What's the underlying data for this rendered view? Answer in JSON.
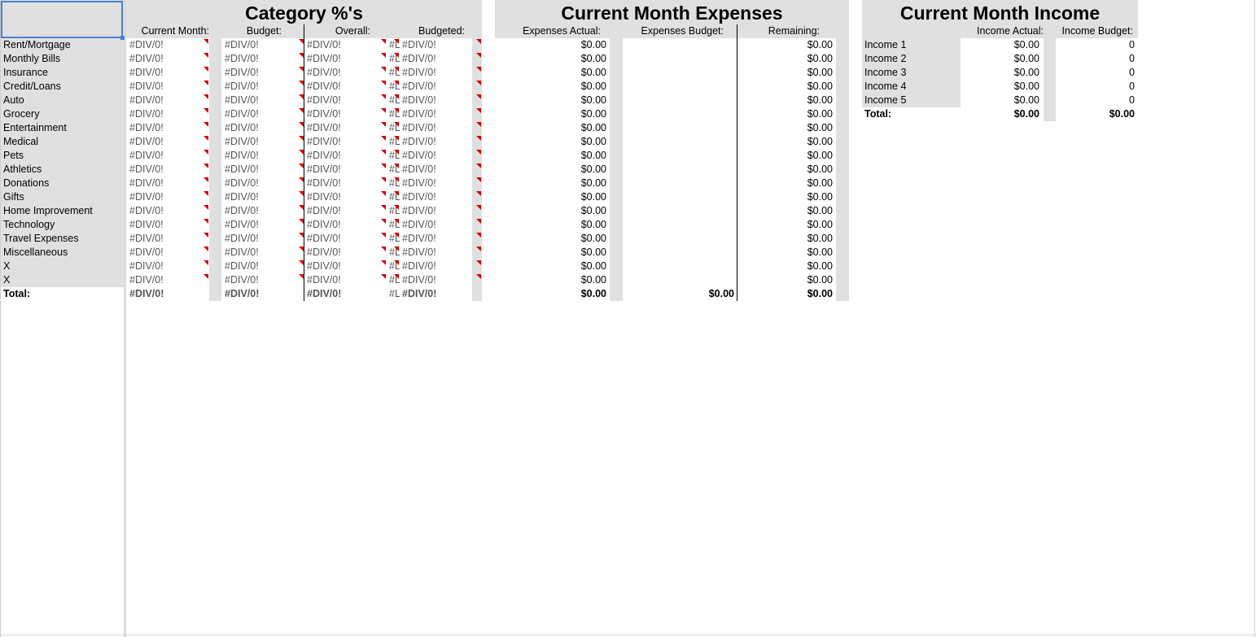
{
  "name_box": "",
  "category_pct": {
    "title": "Category %'s",
    "headers": [
      "Current Month:",
      "Budget:",
      "Overall:",
      "Budgeted:"
    ],
    "error_value": "#DIV/0!",
    "truncated_error": "#L"
  },
  "expenses": {
    "title": "Current Month Expenses",
    "headers": [
      "Expenses Actual:",
      "Expenses Budget:",
      "Remaining:"
    ],
    "row_value": "$0.00",
    "total_actual": "$0.00",
    "total_budget": "$0.00",
    "total_remaining": "$0.00"
  },
  "income": {
    "title": "Current Month Income",
    "headers": [
      "Income Actual:",
      "Income Budget:"
    ],
    "rows": [
      {
        "label": "Income 1",
        "actual": "$0.00",
        "budget": "0"
      },
      {
        "label": "Income 2",
        "actual": "$0.00",
        "budget": "0"
      },
      {
        "label": "Income 3",
        "actual": "$0.00",
        "budget": "0"
      },
      {
        "label": "Income 4",
        "actual": "$0.00",
        "budget": "0"
      },
      {
        "label": "Income 5",
        "actual": "$0.00",
        "budget": "0"
      }
    ],
    "total_label": "Total:",
    "total_actual": "$0.00",
    "total_budget": "$0.00"
  },
  "categories": [
    "Rent/Mortgage",
    "Monthly Bills",
    "Insurance",
    "Credit/Loans",
    "Auto",
    "Grocery",
    "Entertainment",
    "Medical",
    "Pets",
    "Athletics",
    "Donations",
    "Gifts",
    "Home Improvement",
    "Technology",
    "Travel Expenses",
    "Miscellaneous",
    "X",
    "X"
  ],
  "total_label": "Total:",
  "colors": {
    "header_grey": "#e0e0e0",
    "comment_marker": "#d40000",
    "selection": "#4a7fd6"
  }
}
